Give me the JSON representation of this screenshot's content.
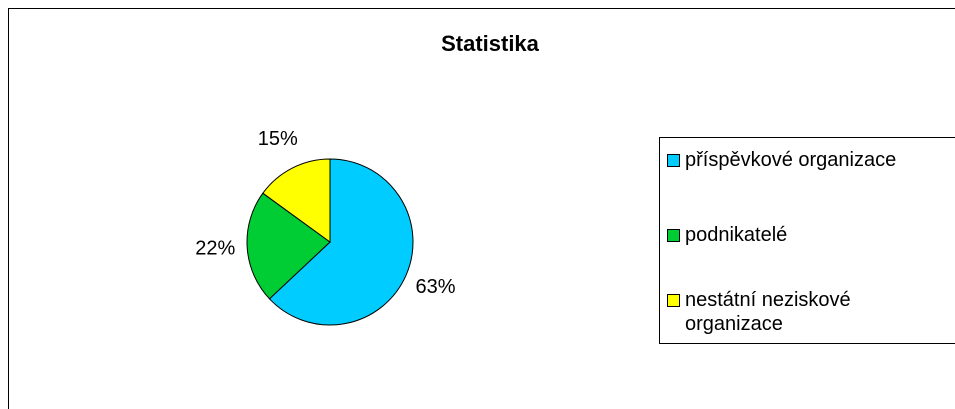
{
  "chart_data": {
    "type": "pie",
    "title": "Statistika",
    "categories": [
      "příspěvkové organizace",
      "podnikatelé",
      "nestátní neziskové organizace"
    ],
    "values": [
      63,
      22,
      15
    ],
    "value_labels": [
      "63%",
      "22%",
      "15%"
    ],
    "colors": [
      "#00ccff",
      "#00cc33",
      "#ffff00"
    ],
    "legend": "right"
  }
}
